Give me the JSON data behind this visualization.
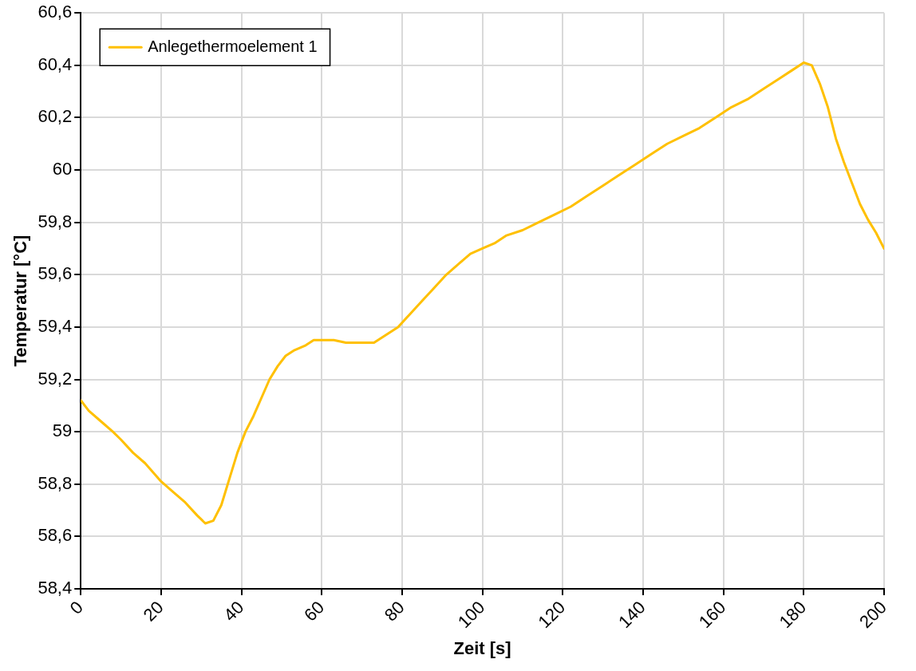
{
  "chart_data": {
    "type": "line",
    "xlabel": "Zeit [s]",
    "ylabel": "Temperatur [°C]",
    "x": [
      0,
      2,
      5,
      8,
      10,
      13,
      16,
      20,
      23,
      26,
      29,
      31,
      33,
      35,
      37,
      39,
      41,
      43,
      45,
      47,
      49,
      51,
      53,
      56,
      58,
      60,
      63,
      66,
      70,
      73,
      76,
      79,
      82,
      85,
      88,
      91,
      94,
      97,
      100,
      103,
      106,
      110,
      114,
      118,
      122,
      126,
      130,
      134,
      138,
      142,
      146,
      150,
      154,
      158,
      162,
      166,
      170,
      174,
      177,
      180,
      182,
      184,
      186,
      188,
      190,
      192,
      194,
      196,
      198,
      200
    ],
    "series": [
      {
        "name": "Anlegethermoelement 1",
        "color": "#ffc000",
        "values": [
          59.12,
          59.08,
          59.04,
          59.0,
          58.97,
          58.92,
          58.88,
          58.81,
          58.77,
          58.73,
          58.68,
          58.65,
          58.66,
          58.72,
          58.82,
          58.92,
          59.0,
          59.06,
          59.13,
          59.2,
          59.25,
          59.29,
          59.31,
          59.33,
          59.35,
          59.35,
          59.35,
          59.34,
          59.34,
          59.34,
          59.37,
          59.4,
          59.45,
          59.5,
          59.55,
          59.6,
          59.64,
          59.68,
          59.7,
          59.72,
          59.75,
          59.77,
          59.8,
          59.83,
          59.86,
          59.9,
          59.94,
          59.98,
          60.02,
          60.06,
          60.1,
          60.13,
          60.16,
          60.2,
          60.24,
          60.27,
          60.31,
          60.35,
          60.38,
          60.41,
          60.4,
          60.33,
          60.24,
          60.12,
          60.03,
          59.95,
          59.87,
          59.81,
          59.76,
          59.7
        ]
      }
    ],
    "xlim": [
      0,
      200
    ],
    "xticks": [
      0,
      20,
      40,
      60,
      80,
      100,
      120,
      140,
      160,
      180,
      200
    ],
    "ylim": [
      58.4,
      60.6
    ],
    "yticks": [
      {
        "value": 58.4,
        "label": "58,4"
      },
      {
        "value": 58.6,
        "label": "58,6"
      },
      {
        "value": 58.8,
        "label": "58,8"
      },
      {
        "value": 59,
        "label": "59"
      },
      {
        "value": 59.2,
        "label": "59,2"
      },
      {
        "value": 59.4,
        "label": "59,4"
      },
      {
        "value": 59.6,
        "label": "59,6"
      },
      {
        "value": 59.8,
        "label": "59,8"
      },
      {
        "value": 60,
        "label": "60"
      },
      {
        "value": 60.2,
        "label": "60,2"
      },
      {
        "value": 60.4,
        "label": "60,4"
      },
      {
        "value": 60.6,
        "label": "60,6"
      }
    ],
    "grid": true,
    "legend": "top left",
    "marker": "none",
    "line_style": "solid"
  }
}
